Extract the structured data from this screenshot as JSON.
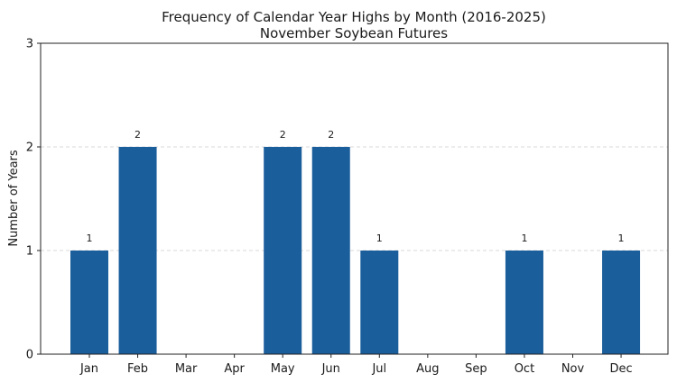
{
  "chart_data": {
    "type": "bar",
    "title": "Frequency of Calendar Year Highs by Month (2016-2025)",
    "subtitle": "November Soybean Futures",
    "xlabel": "",
    "ylabel": "Number of Years",
    "categories": [
      "Jan",
      "Feb",
      "Mar",
      "Apr",
      "May",
      "Jun",
      "Jul",
      "Aug",
      "Sep",
      "Oct",
      "Nov",
      "Dec"
    ],
    "values": [
      1,
      2,
      0,
      0,
      2,
      2,
      1,
      0,
      0,
      1,
      0,
      1
    ],
    "ylim": [
      0,
      3
    ],
    "yticks": [
      0,
      1,
      2,
      3
    ],
    "grid": true,
    "bar_color": "#1a5e9c"
  }
}
